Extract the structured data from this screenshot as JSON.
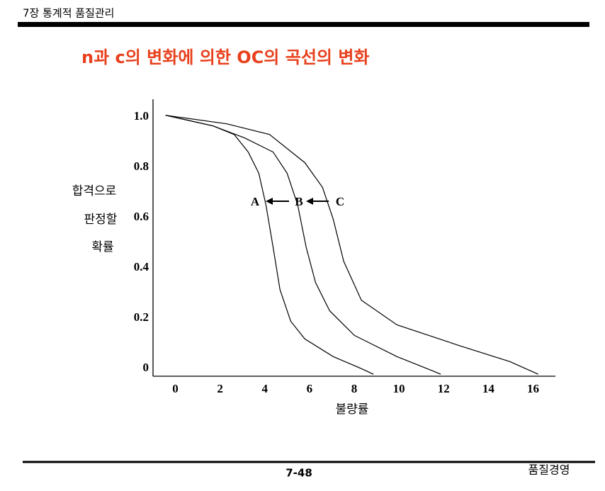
{
  "header": "7장 통계적 품질관리",
  "footer": {
    "page": "7-48",
    "course": "품질경영"
  },
  "chart_data": {
    "type": "line",
    "title": "n과 c의 변화에 의한 OC의 곡선의 변화",
    "xlabel": "불량률",
    "ylabel": [
      "합격으로",
      "판정할",
      "확률"
    ],
    "xlim": [
      -1,
      17
    ],
    "ylim": [
      -0.03,
      1.07
    ],
    "xticks": [
      0,
      2,
      4,
      6,
      8,
      10,
      12,
      14,
      16
    ],
    "yticks": [
      {
        "value": 0,
        "label": "0"
      },
      {
        "value": 0.2,
        "label": "0.2"
      },
      {
        "value": 0.4,
        "label": "0.4"
      },
      {
        "value": 0.6,
        "label": "0.6"
      },
      {
        "value": 0.8,
        "label": "0.8"
      },
      {
        "value": 1,
        "label": "1.0"
      }
    ],
    "color": "#000000",
    "series": [
      {
        "name": "A",
        "x": [
          -0.44,
          1.68,
          2.63,
          3.26,
          3.73,
          4.05,
          4.37,
          4.68,
          5.16,
          5.79,
          7.06,
          8.32,
          8.86
        ],
        "values": [
          1.006,
          0.964,
          0.93,
          0.86,
          0.776,
          0.65,
          0.482,
          0.314,
          0.188,
          0.118,
          0.048,
          0,
          -0.022
        ]
      },
      {
        "name": "B",
        "x": [
          -0.44,
          1.68,
          3.1,
          4.37,
          5.0,
          5.47,
          5.85,
          6.27,
          6.9,
          8.01,
          9.91,
          11.49,
          11.87
        ],
        "values": [
          1.006,
          0.964,
          0.916,
          0.86,
          0.776,
          0.65,
          0.482,
          0.342,
          0.23,
          0.132,
          0.048,
          -0.008,
          -0.022
        ]
      },
      {
        "name": "C",
        "x": [
          -0.44,
          2.31,
          4.21,
          5.79,
          6.58,
          7.06,
          7.53,
          8.32,
          9.91,
          12.75,
          14.97,
          16.23
        ],
        "values": [
          1.006,
          0.972,
          0.93,
          0.818,
          0.72,
          0.594,
          0.426,
          0.272,
          0.174,
          0.09,
          0.028,
          -0.022
        ]
      }
    ]
  }
}
